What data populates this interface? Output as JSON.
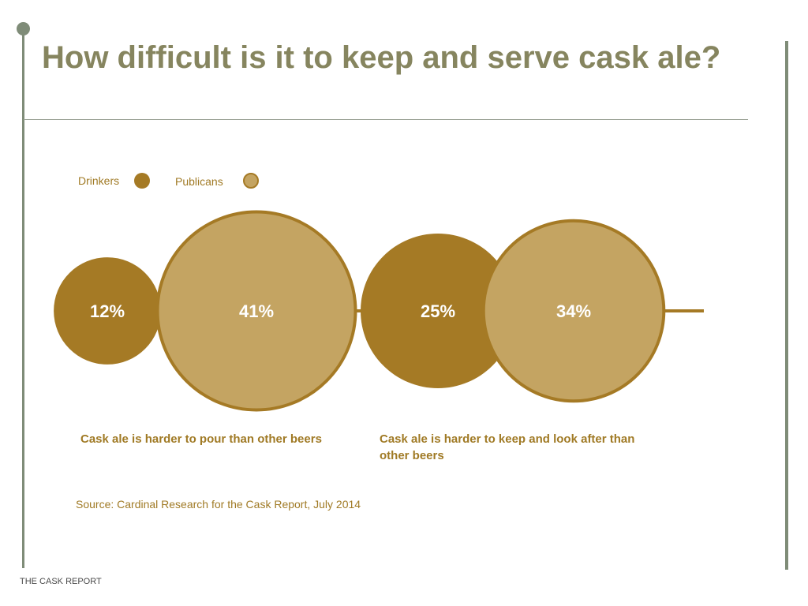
{
  "page": {
    "title": "How difficult is it to keep and serve cask ale?",
    "footer": "THE CASK REPORT"
  },
  "legend": {
    "drinkers": "Drinkers",
    "publicans": "Publicans"
  },
  "colors": {
    "drinkers": "#a57a25",
    "publicans": "#c4a462",
    "outline": "#a57a25",
    "title": "#86855f",
    "accent_rule": "#7f8c78"
  },
  "chart_data": {
    "type": "bubble",
    "title": "How difficult is it to keep and serve cask ale?",
    "series": [
      {
        "name": "Drinkers",
        "values": [
          12,
          25
        ]
      },
      {
        "name": "Publicans",
        "values": [
          41,
          34
        ]
      }
    ],
    "categories": [
      "Cask ale is harder to pour than other beers",
      "Cask ale is harder to keep and look after than other beers"
    ],
    "labels": [
      [
        "12%",
        "41%"
      ],
      [
        "25%",
        "34%"
      ]
    ],
    "unit": "%",
    "legend_position": "top-left",
    "source": "Source: Cardinal Research for the Cask Report, July 2014"
  }
}
